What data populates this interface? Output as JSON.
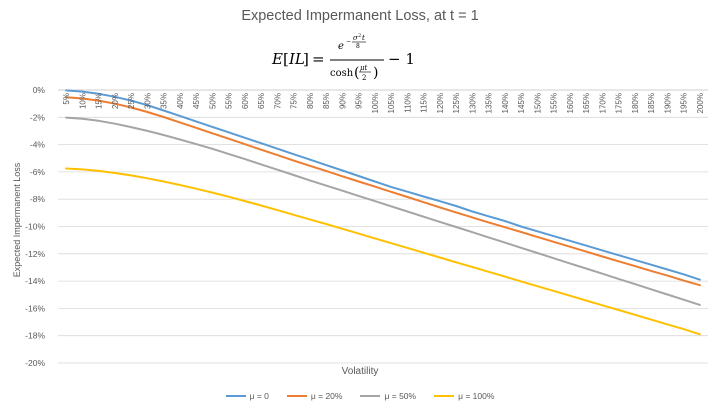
{
  "chart_data": {
    "type": "line",
    "title": "Expected Impermanent Loss, at t = 1",
    "xlabel": "Volatility",
    "ylabel": "Expected Impermanent Loss",
    "categories": [
      "5%",
      "10%",
      "15%",
      "20%",
      "25%",
      "30%",
      "35%",
      "40%",
      "45%",
      "50%",
      "55%",
      "60%",
      "65%",
      "70%",
      "75%",
      "80%",
      "85%",
      "90%",
      "95%",
      "100%",
      "105%",
      "110%",
      "115%",
      "120%",
      "125%",
      "130%",
      "135%",
      "140%",
      "145%",
      "150%",
      "155%",
      "160%",
      "165%",
      "170%",
      "175%",
      "180%",
      "185%",
      "190%",
      "195%",
      "200%"
    ],
    "yticks": [
      "0%",
      "-2%",
      "-4%",
      "-6%",
      "-8%",
      "-10%",
      "-12%",
      "-14%",
      "-16%",
      "-18%",
      "-20%"
    ],
    "ylim": [
      -20,
      0
    ],
    "grid": true,
    "legend_position": "bottom",
    "series": [
      {
        "name": "μ = 0",
        "color": "#5B9BD5",
        "values": [
          -0.03,
          -0.12,
          -0.28,
          -0.5,
          -0.78,
          -1.11,
          -1.5,
          -1.9,
          -2.3,
          -2.7,
          -3.1,
          -3.5,
          -3.9,
          -4.3,
          -4.7,
          -5.1,
          -5.5,
          -5.9,
          -6.3,
          -6.7,
          -7.1,
          -7.45,
          -7.8,
          -8.15,
          -8.5,
          -8.9,
          -9.25,
          -9.6,
          -10.0,
          -10.35,
          -10.7,
          -11.05,
          -11.4,
          -11.75,
          -12.1,
          -12.45,
          -12.8,
          -13.15,
          -13.5,
          -13.9
        ]
      },
      {
        "name": "μ = 20%",
        "color": "#ED7D31",
        "values": [
          -0.53,
          -0.62,
          -0.78,
          -1.0,
          -1.28,
          -1.61,
          -1.98,
          -2.37,
          -2.77,
          -3.17,
          -3.57,
          -3.97,
          -4.37,
          -4.77,
          -5.17,
          -5.55,
          -5.93,
          -6.32,
          -6.7,
          -7.08,
          -7.46,
          -7.84,
          -8.22,
          -8.6,
          -8.97,
          -9.33,
          -9.7,
          -10.05,
          -10.4,
          -10.76,
          -11.12,
          -11.48,
          -11.84,
          -12.2,
          -12.55,
          -12.9,
          -13.25,
          -13.6,
          -13.96,
          -14.3
        ]
      },
      {
        "name": "μ = 50%",
        "color": "#A5A5A5",
        "values": [
          -2.02,
          -2.11,
          -2.26,
          -2.47,
          -2.72,
          -3.0,
          -3.3,
          -3.63,
          -3.96,
          -4.31,
          -4.68,
          -5.06,
          -5.45,
          -5.84,
          -6.23,
          -6.62,
          -7.0,
          -7.38,
          -7.76,
          -8.14,
          -8.52,
          -8.9,
          -9.28,
          -9.66,
          -10.04,
          -10.42,
          -10.8,
          -11.18,
          -11.56,
          -11.94,
          -12.32,
          -12.7,
          -13.08,
          -13.46,
          -13.84,
          -14.22,
          -14.6,
          -14.98,
          -15.36,
          -15.74
        ]
      },
      {
        "name": "μ = 100%",
        "color": "#FFC000",
        "values": [
          -5.75,
          -5.82,
          -5.93,
          -6.08,
          -6.26,
          -6.47,
          -6.7,
          -6.96,
          -7.23,
          -7.52,
          -7.82,
          -8.14,
          -8.46,
          -8.8,
          -9.14,
          -9.48,
          -9.82,
          -10.17,
          -10.52,
          -10.87,
          -11.22,
          -11.57,
          -11.92,
          -12.27,
          -12.62,
          -12.97,
          -13.32,
          -13.67,
          -14.02,
          -14.37,
          -14.72,
          -15.07,
          -15.42,
          -15.77,
          -16.12,
          -16.47,
          -16.82,
          -17.17,
          -17.52,
          -17.9
        ]
      }
    ]
  }
}
